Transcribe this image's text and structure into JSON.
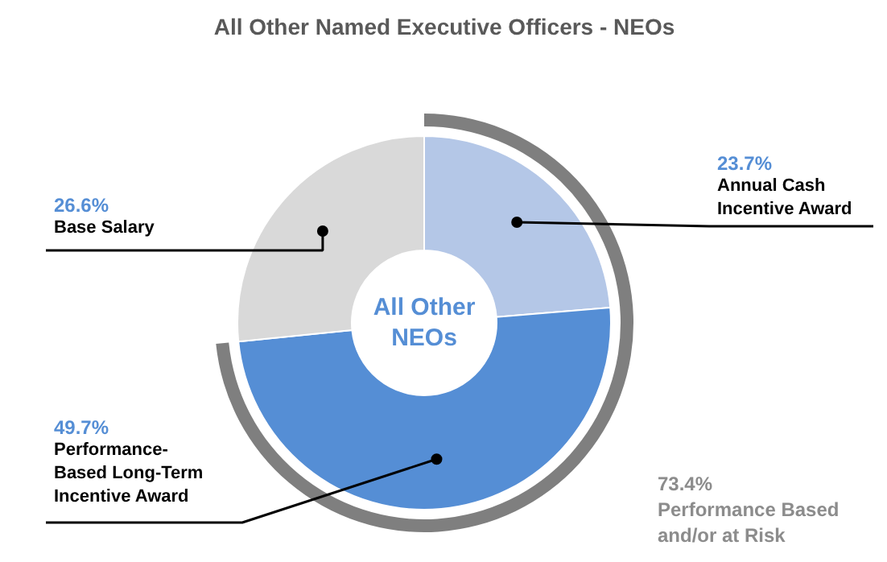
{
  "chart_data": {
    "type": "donut",
    "title": "All Other Named Executive Officers - NEOs",
    "categories": [
      "Annual Cash\nIncentive Award",
      "Performance-\nBased Long-Term\nIncentive Award",
      "Base Salary"
    ],
    "values": [
      23.7,
      49.7,
      26.6
    ],
    "colors": [
      "#b4c7e7",
      "#558ed5",
      "#d9d9d9"
    ],
    "value_labels": [
      "23.7%",
      "49.7%",
      "26.6%"
    ],
    "annotations": [
      "All Other\nNEOs",
      "73.4%\nPerformance Based\nand/or at Risk"
    ]
  }
}
